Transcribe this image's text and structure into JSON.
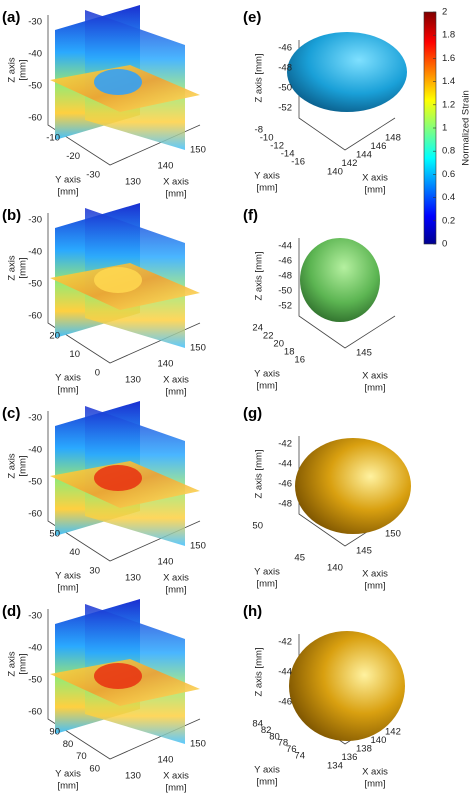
{
  "panels": [
    {
      "label": "(a)",
      "z_label": [
        "Z axis",
        "[mm]"
      ],
      "z_ticks": [
        "-30",
        "-40",
        "-50",
        "-60"
      ],
      "y_label": [
        "Y axis",
        "[mm]"
      ],
      "y_ticks": [
        "-10",
        "-20",
        "-30"
      ],
      "x_label": [
        "X axis",
        "[mm]"
      ],
      "x_ticks": [
        "130",
        "140",
        "150"
      ]
    },
    {
      "label": "(e)",
      "z_label": [
        "Z axis [mm]"
      ],
      "z_ticks": [
        "-46",
        "-48",
        "-50",
        "-52"
      ],
      "y_label": [
        "Y axis",
        "[mm]"
      ],
      "y_ticks": [
        "-8",
        "-10",
        "-12",
        "-14",
        "-16"
      ],
      "x_label": [
        "X axis",
        "[mm]"
      ],
      "x_ticks": [
        "140",
        "142",
        "144",
        "146",
        "148"
      ]
    },
    {
      "label": "(b)",
      "z_label": [
        "Z axis",
        "[mm]"
      ],
      "z_ticks": [
        "-30",
        "-40",
        "-50",
        "-60"
      ],
      "y_label": [
        "Y axis",
        "[mm]"
      ],
      "y_ticks": [
        "20",
        "10",
        "0"
      ],
      "x_label": [
        "X axis",
        "[mm]"
      ],
      "x_ticks": [
        "130",
        "140",
        "150"
      ]
    },
    {
      "label": "(f)",
      "z_label": [
        "Z axis [mm]"
      ],
      "z_ticks": [
        "-44",
        "-46",
        "-48",
        "-50",
        "-52"
      ],
      "y_label": [
        "Y axis",
        "[mm]"
      ],
      "y_ticks": [
        "24",
        "22",
        "20",
        "18",
        "16"
      ],
      "x_label": [
        "X axis",
        "[mm]"
      ],
      "x_ticks": [
        "145"
      ]
    },
    {
      "label": "(c)",
      "z_label": [
        "Z axis",
        "[mm]"
      ],
      "z_ticks": [
        "-30",
        "-40",
        "-50",
        "-60"
      ],
      "y_label": [
        "Y axis",
        "[mm]"
      ],
      "y_ticks": [
        "50",
        "40",
        "30"
      ],
      "x_label": [
        "X axis",
        "[mm]"
      ],
      "x_ticks": [
        "130",
        "140",
        "150"
      ]
    },
    {
      "label": "(g)",
      "z_label": [
        "Z axis [mm]"
      ],
      "z_ticks": [
        "-42",
        "-44",
        "-46",
        "-48"
      ],
      "y_label": [
        "Y axis",
        "[mm]"
      ],
      "y_ticks": [
        "50",
        "45"
      ],
      "x_label": [
        "X axis",
        "[mm]"
      ],
      "x_ticks": [
        "140",
        "145",
        "150"
      ]
    },
    {
      "label": "(d)",
      "z_label": [
        "Z axis",
        "[mm]"
      ],
      "z_ticks": [
        "-30",
        "-40",
        "-50",
        "-60"
      ],
      "y_label": [
        "Y axis",
        "[mm]"
      ],
      "y_ticks": [
        "90",
        "80",
        "70",
        "60"
      ],
      "x_label": [
        "X axis",
        "[mm]"
      ],
      "x_ticks": [
        "130",
        "140",
        "150"
      ]
    },
    {
      "label": "(h)",
      "z_label": [
        "Z axis [mm]"
      ],
      "z_ticks": [
        "-42",
        "-44",
        "-46"
      ],
      "y_label": [
        "Y axis",
        "[mm]"
      ],
      "y_ticks": [
        "84",
        "82",
        "80",
        "78",
        "76",
        "74"
      ],
      "x_label": [
        "X axis",
        "[mm]"
      ],
      "x_ticks": [
        "134",
        "136",
        "138",
        "140",
        "142"
      ]
    }
  ],
  "colorbar": {
    "label": "Normalized Strain",
    "ticks": [
      "0",
      "0.2",
      "0.4",
      "0.6",
      "0.8",
      "1",
      "1.2",
      "1.4",
      "1.6",
      "1.8",
      "2"
    ]
  }
}
